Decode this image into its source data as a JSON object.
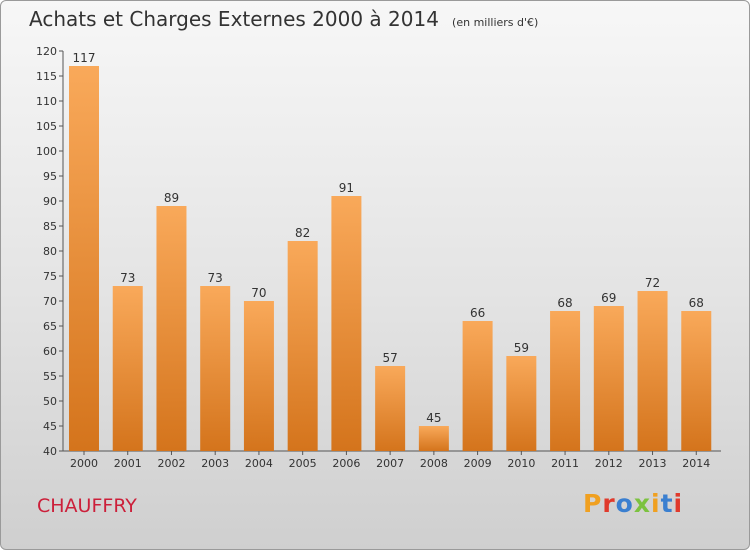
{
  "header": {
    "title": "Achats et Charges Externes 2000 à 2014",
    "unit": "(en milliers d'€)"
  },
  "footer": {
    "commune": "CHAUFFRY",
    "brand": "Proxiti",
    "brand_colors": [
      "#f0a020",
      "#e03a2c",
      "#3a7fd0",
      "#7cc240",
      "#f0a020",
      "#3a7fd0",
      "#e03a2c"
    ]
  },
  "colors": {
    "bar_top": "#f9a95a",
    "bar_bottom": "#d4741c",
    "title": "#333333",
    "commune": "#cc1f3a"
  },
  "chart_data": {
    "type": "bar",
    "title": "Achats et Charges Externes 2000 à 2014",
    "subtitle": "(en milliers d'€)",
    "xlabel": "",
    "ylabel": "",
    "categories": [
      "2000",
      "2001",
      "2002",
      "2003",
      "2004",
      "2005",
      "2006",
      "2007",
      "2008",
      "2009",
      "2010",
      "2011",
      "2012",
      "2013",
      "2014"
    ],
    "values": [
      117,
      73,
      89,
      73,
      70,
      82,
      91,
      57,
      45,
      66,
      59,
      68,
      69,
      72,
      68
    ],
    "ylim": [
      40,
      120
    ],
    "yticks": [
      40,
      45,
      50,
      55,
      60,
      65,
      70,
      75,
      80,
      85,
      90,
      95,
      100,
      105,
      110,
      115,
      120
    ],
    "grid": false,
    "data_labels": true
  }
}
